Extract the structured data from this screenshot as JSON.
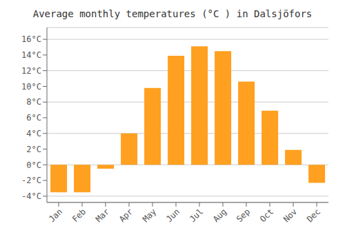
{
  "chart_data": {
    "type": "bar",
    "title": "Average monthly temperatures (°C ) in Dalsjöfors",
    "categories": [
      "Jan",
      "Feb",
      "Mar",
      "Apr",
      "May",
      "Jun",
      "Jul",
      "Aug",
      "Sep",
      "Oct",
      "Nov",
      "Dec"
    ],
    "values": [
      -3.5,
      -3.5,
      -0.5,
      4.0,
      9.8,
      13.9,
      15.1,
      14.5,
      10.6,
      6.9,
      1.9,
      -2.3
    ],
    "color": "#FFA020",
    "ylim": [
      -4.8,
      17.5
    ],
    "yticks": [
      {
        "value": -4,
        "label": "-4°C"
      },
      {
        "value": -2,
        "label": "-2°C"
      },
      {
        "value": 0,
        "label": "0°C"
      },
      {
        "value": 2,
        "label": "2°C"
      },
      {
        "value": 4,
        "label": "4°C"
      },
      {
        "value": 6,
        "label": "6°C"
      },
      {
        "value": 8,
        "label": "8°C"
      },
      {
        "value": 10,
        "label": "10°C"
      },
      {
        "value": 12,
        "label": "12°C"
      },
      {
        "value": 14,
        "label": "14°C"
      },
      {
        "value": 16,
        "label": "16°C"
      }
    ],
    "grid": true
  }
}
